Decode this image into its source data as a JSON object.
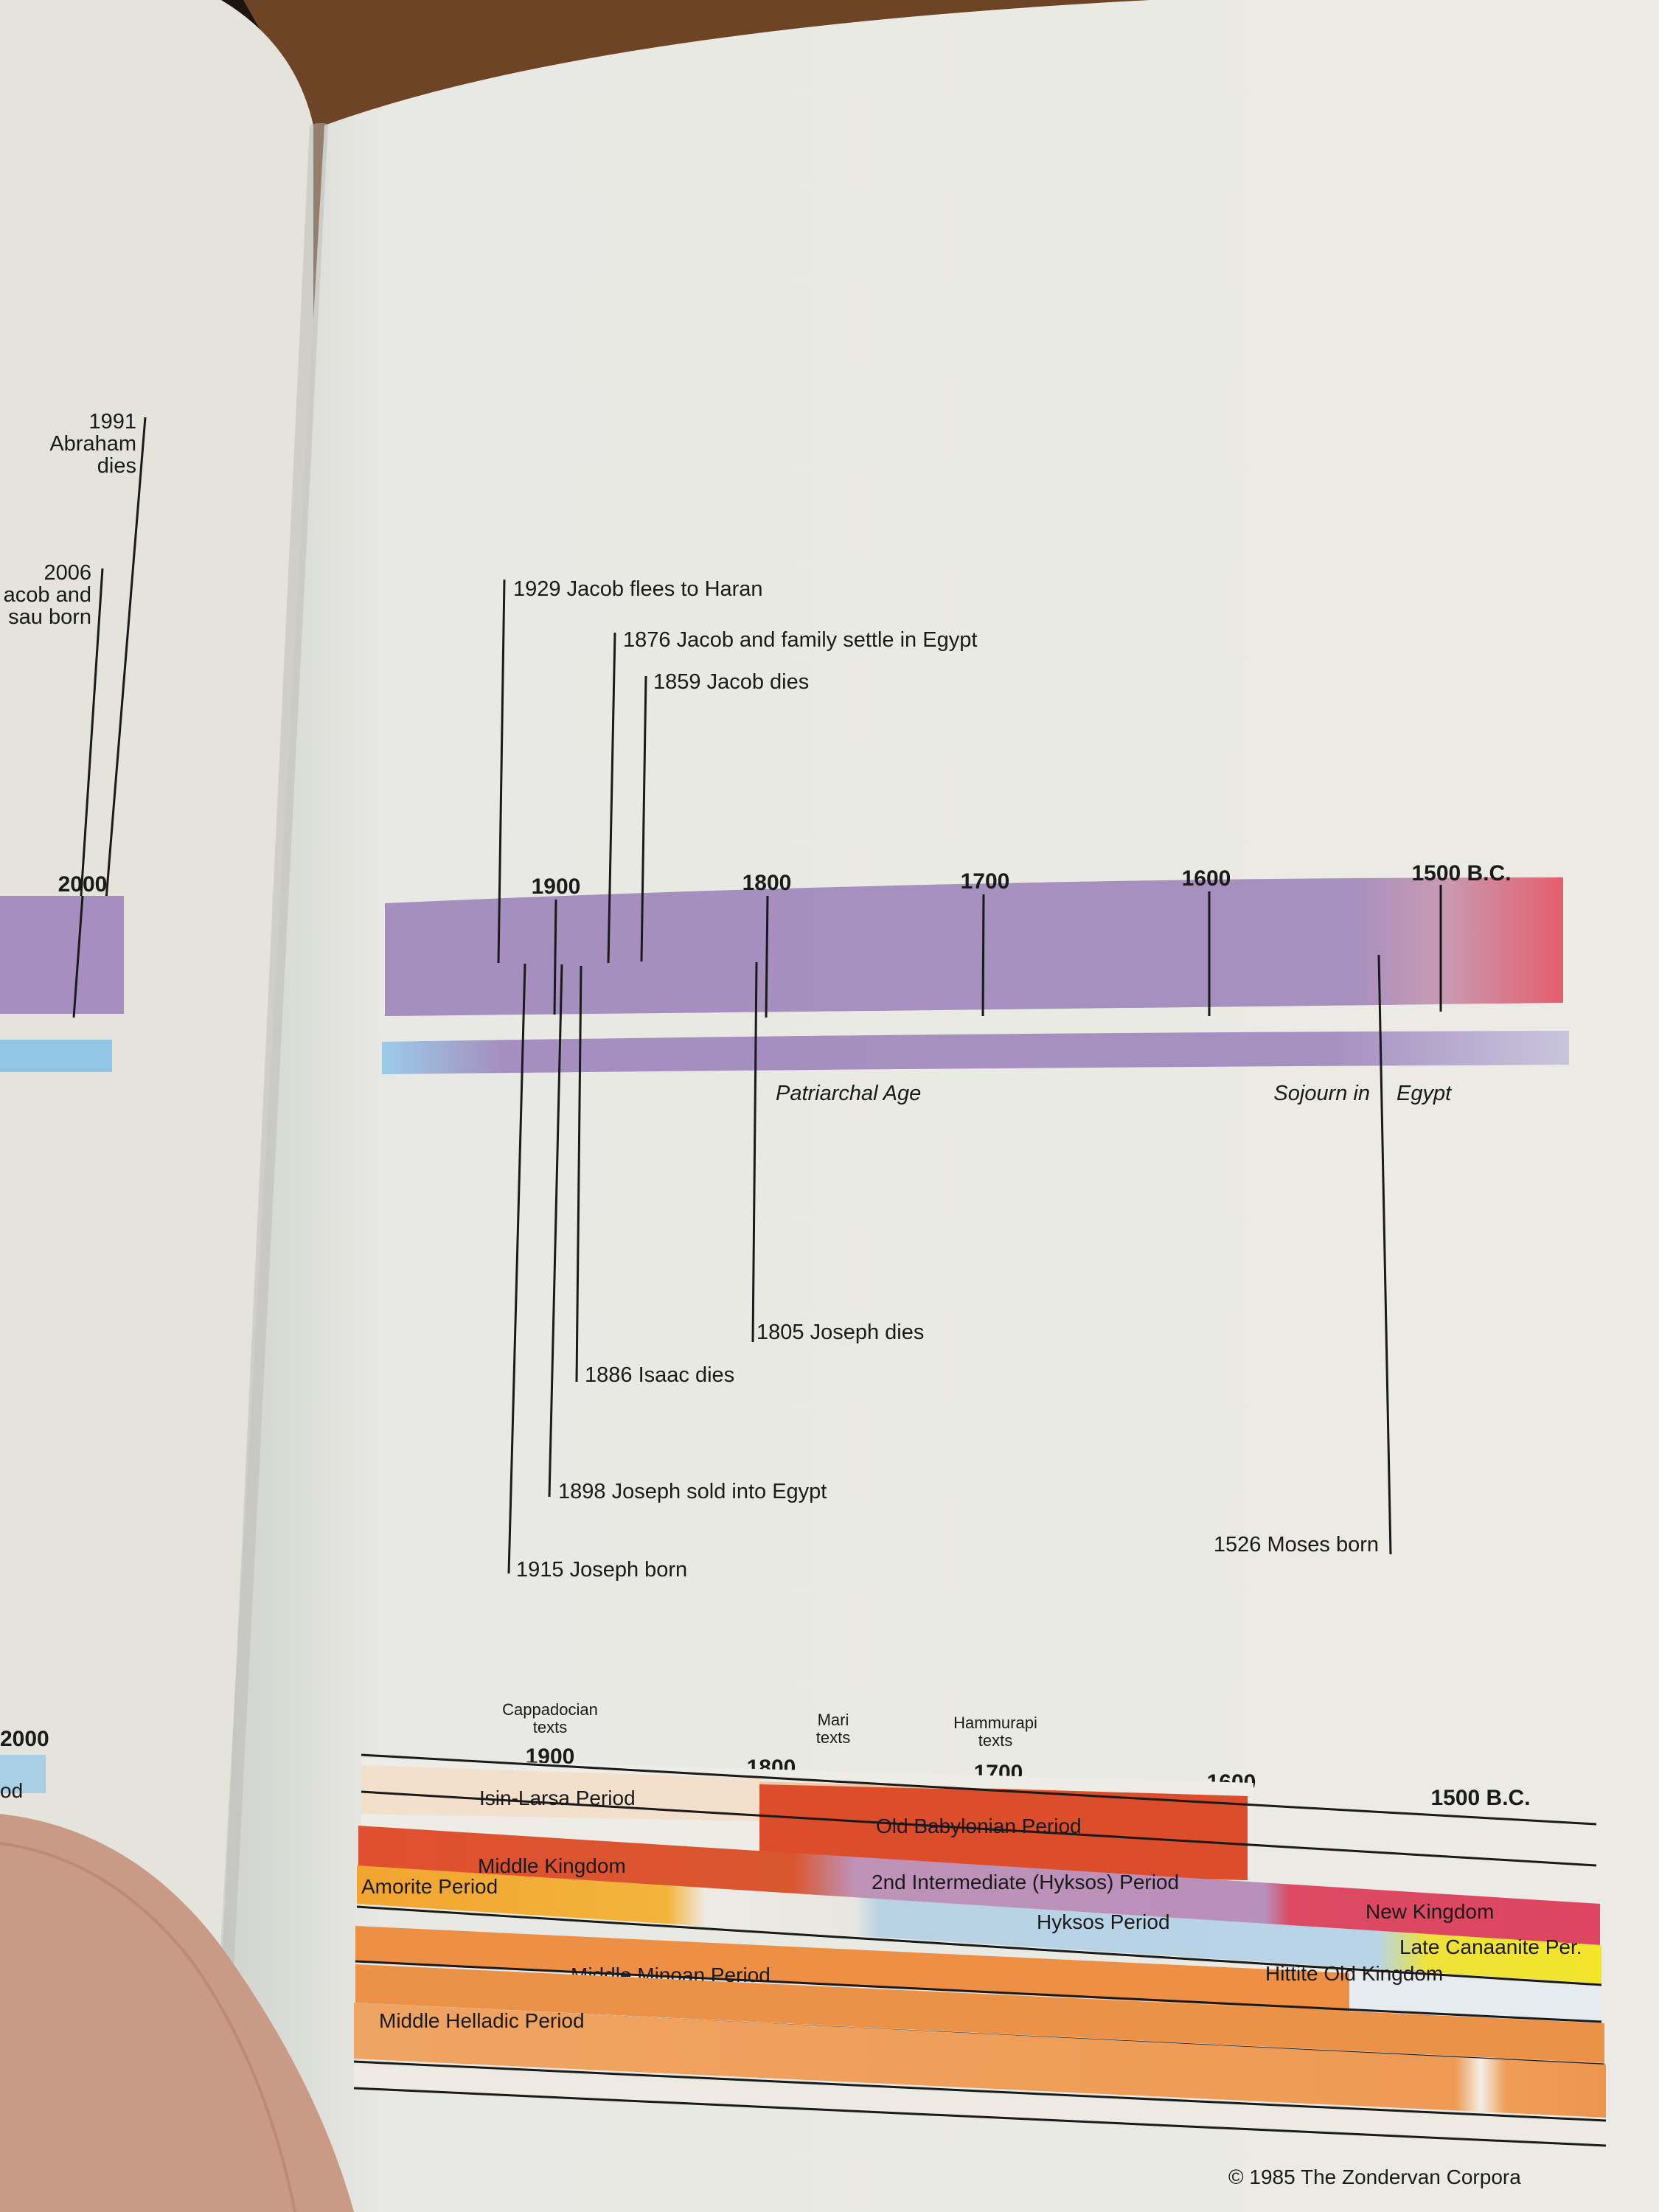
{
  "left_page": {
    "events": [
      {
        "year": "1991",
        "lines": [
          "Abraham",
          "dies"
        ]
      },
      {
        "year": "2006",
        "lines": [
          "acob and",
          "sau born"
        ]
      }
    ],
    "axis_label": "2000",
    "bottom_year": "2000",
    "bottom_fragment": "od"
  },
  "timeline": {
    "axis_ticks": [
      "1900",
      "1800",
      "1700",
      "1600",
      "1500 B.C."
    ],
    "events_above": [
      "1929 Jacob flees to Haran",
      "1876 Jacob and family settle in Egypt",
      "1859 Jacob dies"
    ],
    "events_below": [
      "1805 Joseph dies",
      "1886 Isaac dies",
      "1898 Joseph sold into Egypt",
      "1915 Joseph born",
      "1526 Moses born"
    ],
    "eras": [
      "Patriarchal Age",
      "Sojourn in",
      "Egypt"
    ]
  },
  "reference": {
    "texts": [
      {
        "lines": [
          "Cappadocian",
          "texts"
        ]
      },
      {
        "lines": [
          "Mari",
          "texts"
        ]
      },
      {
        "lines": [
          "Hammurapi",
          "texts"
        ]
      }
    ],
    "years": [
      "1900",
      "1800",
      "1700",
      "1600",
      "1500 B.C."
    ],
    "periods": {
      "isin_larsa": "Isin-Larsa Period",
      "old_babylonian": "Old Babylonian Period",
      "middle_kingdom": "Middle Kingdom",
      "second_intermediate": "2nd Intermediate (Hyksos) Period",
      "new_kingdom": "New Kingdom",
      "amorite": "Amorite Period",
      "hyksos": "Hyksos Period",
      "late_canaanite": "Late Canaanite Per.",
      "hittite_old": "Hittite Old Kingdom",
      "middle_minoan": "Middle Minoan Period",
      "middle_helladic": "Middle Helladic Period"
    }
  },
  "copyright": "© 1985 The Zondervan Corpora",
  "colors": {
    "purple": "#a68fc0",
    "orange_red": "#dd4e2a",
    "light_blue": "#a9cfe6",
    "crimson": "#dd4660",
    "yellow": "#f2e42a",
    "orange": "#ec9448",
    "amber": "#f0a83a"
  }
}
